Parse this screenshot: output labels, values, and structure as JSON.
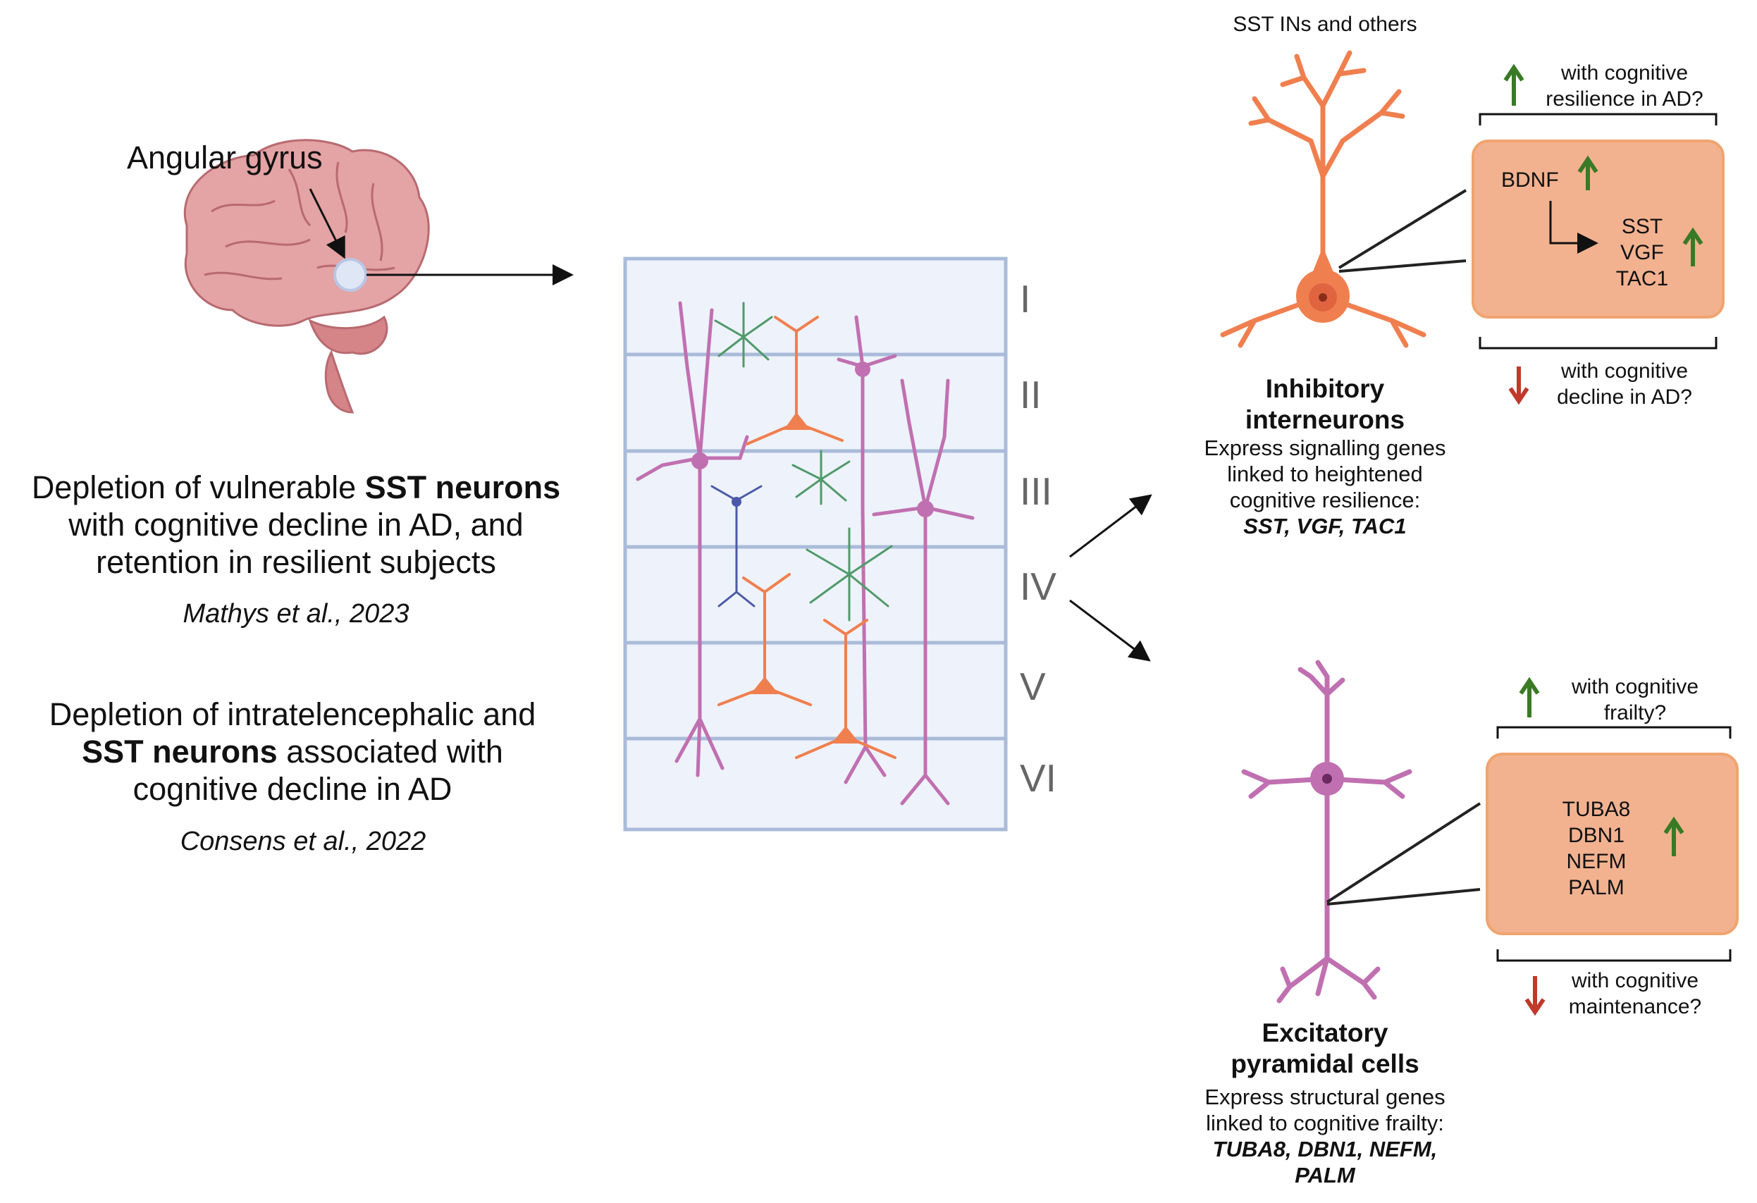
{
  "brain": {
    "label": "Angular gyrus"
  },
  "findings": [
    {
      "line1_pre": "Depletion of vulnerable ",
      "line1_bold": "SST neurons",
      "line2": "with cognitive decline in AD, and",
      "line3": "retention in resilient subjects",
      "citation": "Mathys et al., 2023"
    },
    {
      "line1": "Depletion of intratelencephalic and",
      "line2_bold": "SST neurons",
      "line2_post": " associated with",
      "line3": "cognitive decline in AD",
      "citation": "Consens et al., 2022"
    }
  ],
  "cortex": {
    "layers": [
      "I",
      "II",
      "III",
      "IV",
      "V",
      "VI"
    ]
  },
  "inhibitory": {
    "header": "SST INs and others",
    "title_line1": "Inhibitory",
    "title_line2": "interneurons",
    "desc_line1": "Express signalling genes",
    "desc_line2": "linked to heightened",
    "desc_line3": "cognitive resilience:",
    "genes": "SST, VGF, TAC1",
    "up_note_line1": "with cognitive",
    "up_note_line2": "resilience in AD?",
    "down_note_line1": "with cognitive",
    "down_note_line2": "decline in AD?",
    "box": {
      "upstream": "BDNF",
      "targets": [
        "SST",
        "VGF",
        "TAC1"
      ]
    }
  },
  "excitatory": {
    "title_line1": "Excitatory",
    "title_line2": "pyramidal cells",
    "desc_line1": "Express structural genes",
    "desc_line2": "linked to cognitive frailty:",
    "genes_line1": "TUBA8, DBN1, NEFM,",
    "genes_line2": "PALM",
    "up_note_line1": "with cognitive",
    "up_note_line2": "frailty?",
    "down_note_line1": "with cognitive",
    "down_note_line2": "maintenance?",
    "box": {
      "genes": [
        "TUBA8",
        "DBN1",
        "NEFM",
        "PALM"
      ]
    }
  },
  "colors": {
    "up_arrow": "#3a7a25",
    "down_arrow": "#c0392b",
    "box_fill": "#f2b290",
    "box_stroke": "#f0a46f",
    "interneuron": "#f07f4f",
    "pyramidal": "#c070b0",
    "astrocyte": "#4f9a6a",
    "blue_neuron": "#4a5aa8",
    "cortex_grid": "#a9bbd9",
    "brain": "#d88a8e"
  }
}
